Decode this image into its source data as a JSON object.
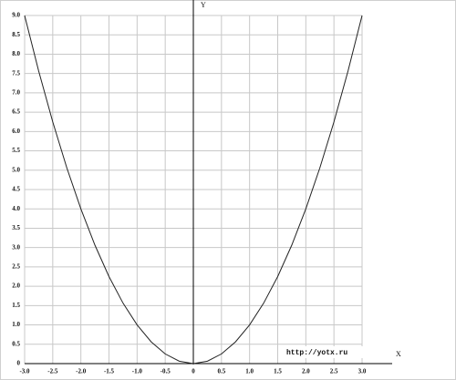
{
  "chart_data": {
    "type": "line",
    "x_label": "X",
    "y_label": "Y",
    "watermark": "http://yotx.ru",
    "x": [
      -3,
      -2.75,
      -2.5,
      -2.25,
      -2,
      -1.75,
      -1.5,
      -1.25,
      -1,
      -0.75,
      -0.5,
      -0.25,
      0,
      0.25,
      0.5,
      0.75,
      1,
      1.25,
      1.5,
      1.75,
      2,
      2.25,
      2.5,
      2.75,
      3
    ],
    "series": [
      {
        "color": "#222222",
        "values": [
          9,
          7.5625,
          6.25,
          5.0625,
          4,
          3.0625,
          2.25,
          1.5625,
          1,
          0.5625,
          0.25,
          0.0625,
          0,
          0.0625,
          0.25,
          0.5625,
          1,
          1.5625,
          2.25,
          3.0625,
          4,
          5.0625,
          6.25,
          7.5625,
          9
        ]
      }
    ],
    "xlim": [
      -3,
      3
    ],
    "ylim": [
      0,
      9
    ],
    "xticks": [
      {
        "value": -3,
        "label": "-3.0"
      },
      {
        "value": -2.5,
        "label": "-2.5"
      },
      {
        "value": -2,
        "label": "-2.0"
      },
      {
        "value": -1.5,
        "label": "-1.5"
      },
      {
        "value": -1,
        "label": "-1.0"
      },
      {
        "value": -0.5,
        "label": "-0.5"
      },
      0,
      {
        "value": 0.5,
        "label": "0.5"
      },
      {
        "value": 1,
        "label": "1.0"
      },
      {
        "value": 1.5,
        "label": "1.5"
      },
      {
        "value": 2,
        "label": "2.0"
      },
      {
        "value": 2.5,
        "label": "2.5"
      },
      {
        "value": 3,
        "label": "3.0"
      }
    ],
    "yticks": [
      0,
      {
        "value": 0.5,
        "label": "0.5"
      },
      {
        "value": 1,
        "label": "1.0"
      },
      {
        "value": 1.5,
        "label": "1.5"
      },
      {
        "value": 2,
        "label": "2.0"
      },
      {
        "value": 2.5,
        "label": "2.5"
      },
      {
        "value": 3,
        "label": "3.0"
      },
      {
        "value": 3.5,
        "label": "3.5"
      },
      {
        "value": 4,
        "label": "4.0"
      },
      {
        "value": 4.5,
        "label": "4.5"
      },
      {
        "value": 5,
        "label": "5.0"
      },
      {
        "value": 5.5,
        "label": "5.5"
      },
      {
        "value": 6,
        "label": "6.0"
      },
      {
        "value": 6.5,
        "label": "6.5"
      },
      {
        "value": 7,
        "label": "7.0"
      },
      {
        "value": 7.5,
        "label": "7.5"
      },
      {
        "value": 8,
        "label": "8.0"
      },
      {
        "value": 8.5,
        "label": "8.5"
      },
      {
        "value": 9,
        "label": "9.0"
      }
    ],
    "grid": true
  }
}
